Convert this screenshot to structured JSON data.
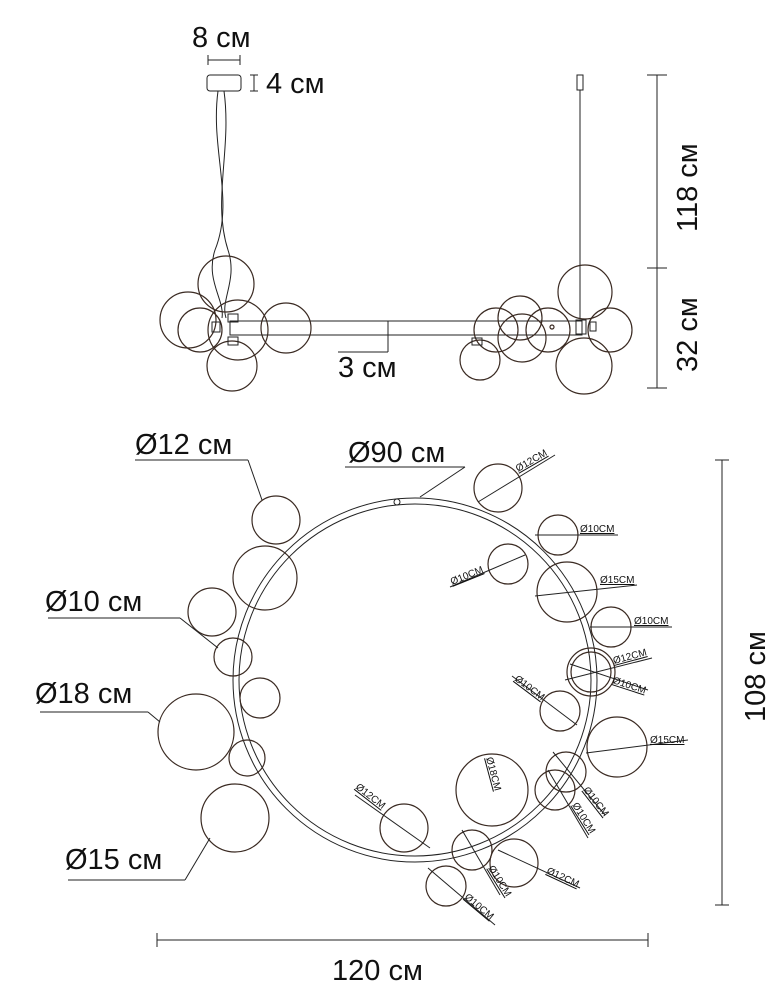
{
  "side_view": {
    "canopy_width": "8 см",
    "canopy_height": "4 см",
    "cable_length": "118 см",
    "body_height": "32 см",
    "bar_diameter": "3 см"
  },
  "top_view": {
    "ring_diameter": "Ø90 см",
    "overall_width": "120 см",
    "overall_depth": "108 см",
    "left_labels": [
      "Ø12 см",
      "Ø10 см",
      "Ø18 см",
      "Ø15 см"
    ],
    "ball_labels": [
      "Ø12CM",
      "Ø10CM",
      "Ø10CM",
      "Ø15CM",
      "Ø10CM",
      "Ø12CM",
      "Ø10CM",
      "Ø10CM",
      "Ø15CM",
      "Ø18CM",
      "Ø10CM",
      "Ø10CM",
      "Ø12CM",
      "Ø10CM",
      "Ø12CM",
      "Ø10CM"
    ]
  },
  "colors": {
    "line": "#222222",
    "ball": "#3a2a22"
  }
}
